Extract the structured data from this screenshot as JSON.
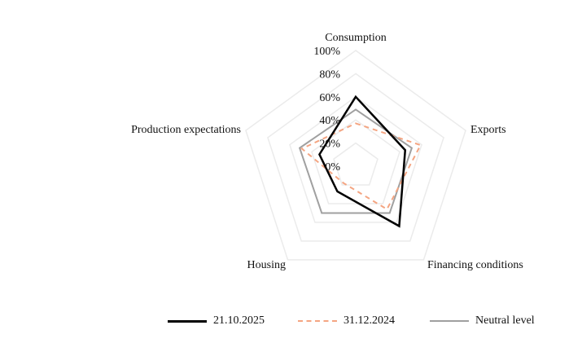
{
  "chart_data": {
    "type": "radar",
    "axes": [
      "Consumption",
      "Exports",
      "Financing conditions",
      "Housing",
      "Production expectations"
    ],
    "radial_ticks": [
      "0%",
      "20%",
      "40%",
      "60%",
      "80%",
      "100%"
    ],
    "rlim": [
      0,
      100
    ],
    "grid": true,
    "legend_position": "bottom",
    "series": [
      {
        "name": "21.10.2025",
        "values": [
          60,
          45,
          64,
          27,
          33
        ],
        "color": "#000000",
        "style": "solid"
      },
      {
        "name": "31.12.2024",
        "values": [
          37,
          59,
          46,
          18,
          49
        ],
        "color": "#f4a582",
        "style": "dashed"
      },
      {
        "name": "Neutral level",
        "values": [
          49,
          51,
          50,
          50,
          51
        ],
        "color": "#a0a0a0",
        "style": "solid"
      }
    ]
  }
}
